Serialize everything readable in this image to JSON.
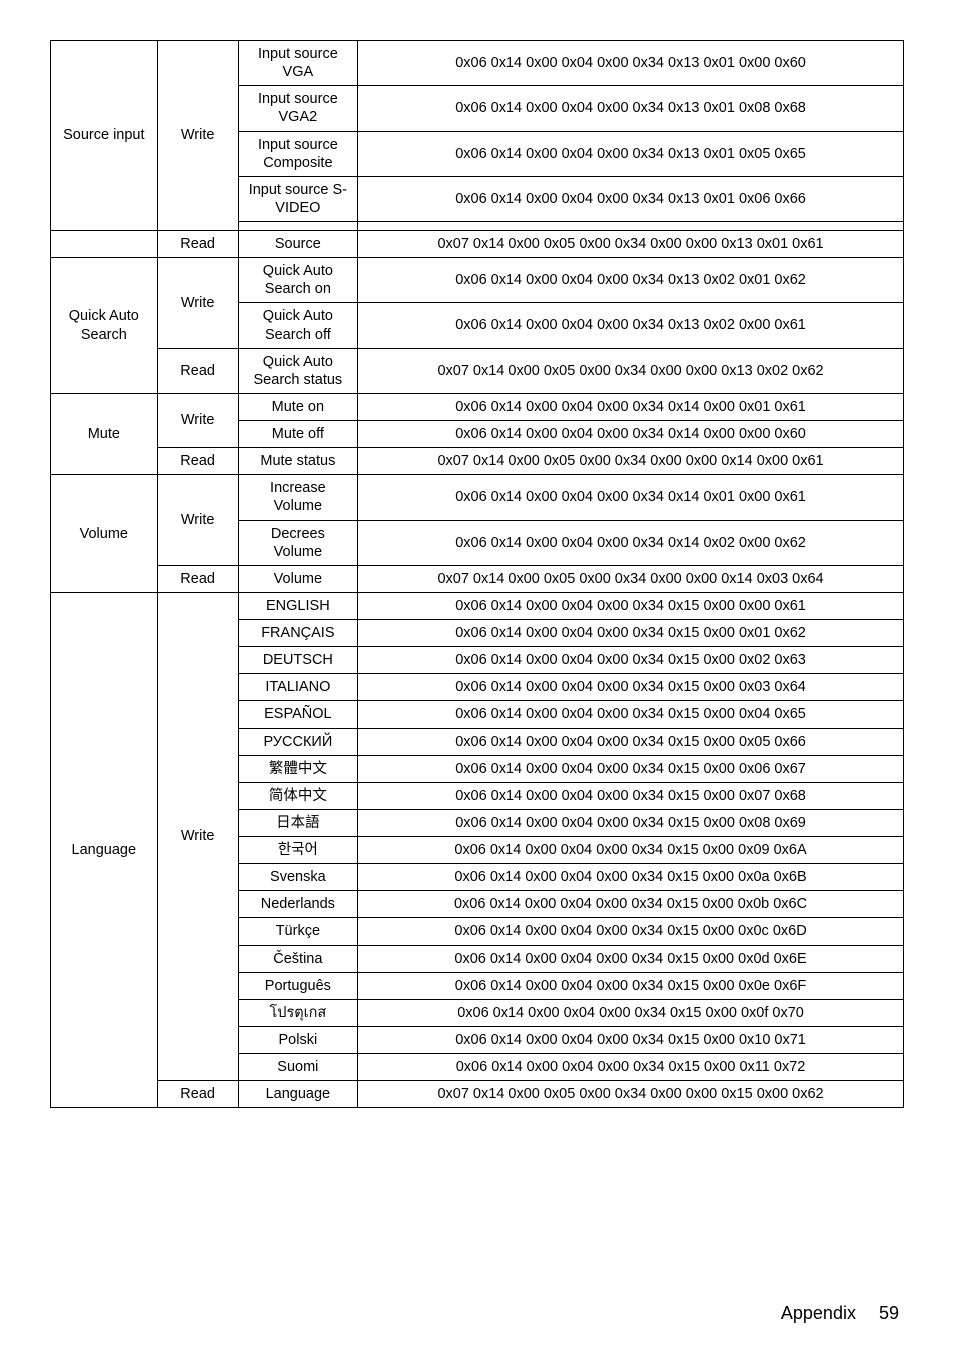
{
  "footer": {
    "label": "Appendix",
    "page": "59"
  },
  "rows": [
    {
      "c1": "Source input",
      "c1rs": 5,
      "c2": "Write",
      "c2rs": 5,
      "c3": "Input source VGA",
      "c4": "0x06 0x14 0x00 0x04 0x00 0x34 0x13 0x01 0x00 0x60"
    },
    {
      "c3": "Input source VGA2",
      "c4": "0x06 0x14 0x00 0x04 0x00 0x34 0x13 0x01 0x08 0x68"
    },
    {
      "c3": "Input source Composite",
      "c4": "0x06 0x14 0x00 0x04 0x00 0x34 0x13 0x01 0x05 0x65"
    },
    {
      "c3": "Input source S-VIDEO",
      "c4": "0x06 0x14 0x00 0x04 0x00 0x34 0x13 0x01 0x06 0x66"
    },
    {
      "c3": "",
      "c4": ""
    },
    {
      "c1": "",
      "c1rs": 1,
      "c2": "Read",
      "c2rs": 1,
      "c3": "Source",
      "c4": "0x07 0x14 0x00 0x05 0x00 0x34 0x00 0x00 0x13 0x01 0x61"
    },
    {
      "c1": "Quick Auto Search",
      "c1rs": 3,
      "c2": "Write",
      "c2rs": 2,
      "c3": "Quick Auto Search on",
      "c4": "0x06 0x14 0x00 0x04 0x00 0x34 0x13 0x02 0x01 0x62"
    },
    {
      "c3": "Quick Auto Search off",
      "c4": "0x06 0x14 0x00 0x04 0x00 0x34 0x13 0x02 0x00 0x61"
    },
    {
      "c2": "Read",
      "c2rs": 1,
      "c3": "Quick Auto Search status",
      "c4": "0x07 0x14 0x00 0x05 0x00 0x34 0x00 0x00 0x13 0x02 0x62"
    },
    {
      "c1": "Mute",
      "c1rs": 3,
      "c2": "Write",
      "c2rs": 2,
      "c3": "Mute on",
      "c4": "0x06 0x14 0x00 0x04 0x00 0x34 0x14 0x00 0x01 0x61"
    },
    {
      "c3": "Mute off",
      "c4": "0x06 0x14 0x00 0x04 0x00 0x34 0x14 0x00 0x00 0x60"
    },
    {
      "c2": "Read",
      "c2rs": 1,
      "c3": "Mute status",
      "c4": "0x07 0x14 0x00 0x05 0x00 0x34 0x00 0x00 0x14 0x00 0x61"
    },
    {
      "c1": "Volume",
      "c1rs": 3,
      "c2": "Write",
      "c2rs": 2,
      "c3": "Increase Volume",
      "c4": "0x06 0x14 0x00 0x04 0x00 0x34 0x14 0x01 0x00 0x61"
    },
    {
      "c3": "Decrees Volume",
      "c4": "0x06 0x14 0x00 0x04 0x00 0x34 0x14 0x02 0x00 0x62"
    },
    {
      "c2": "Read",
      "c2rs": 1,
      "c3": "Volume",
      "c4": "0x07 0x14 0x00 0x05 0x00 0x34 0x00 0x00 0x14 0x03 0x64"
    },
    {
      "c1": "Language",
      "c1rs": 19,
      "c2": "Write",
      "c2rs": 18,
      "c3": "ENGLISH",
      "c4": "0x06 0x14 0x00 0x04 0x00 0x34 0x15 0x00 0x00 0x61"
    },
    {
      "c3": "FRANÇAIS",
      "c4": "0x06 0x14 0x00 0x04 0x00 0x34 0x15 0x00 0x01 0x62"
    },
    {
      "c3": "DEUTSCH",
      "c4": "0x06 0x14 0x00 0x04 0x00 0x34 0x15 0x00 0x02 0x63"
    },
    {
      "c3": "ITALIANO",
      "c4": "0x06 0x14 0x00 0x04 0x00 0x34 0x15 0x00 0x03 0x64"
    },
    {
      "c3": "ESPAÑOL",
      "c4": "0x06 0x14 0x00 0x04 0x00 0x34 0x15 0x00 0x04 0x65"
    },
    {
      "c3": "РУССКИЙ",
      "c4": "0x06 0x14 0x00 0x04 0x00 0x34 0x15 0x00 0x05 0x66"
    },
    {
      "c3": "繁體中文",
      "c4": "0x06 0x14 0x00 0x04 0x00 0x34 0x15 0x00 0x06 0x67"
    },
    {
      "c3": "简体中文",
      "c4": "0x06 0x14 0x00 0x04 0x00 0x34 0x15 0x00 0x07 0x68"
    },
    {
      "c3": "日本語",
      "c4": "0x06 0x14 0x00 0x04 0x00 0x34 0x15 0x00 0x08 0x69"
    },
    {
      "c3": "한국어",
      "c4": "0x06 0x14 0x00 0x04 0x00 0x34 0x15 0x00 0x09 0x6A"
    },
    {
      "c3": "Svenska",
      "c4": "0x06 0x14 0x00 0x04 0x00 0x34 0x15 0x00 0x0a 0x6B"
    },
    {
      "c3": "Nederlands",
      "c4": "0x06 0x14 0x00 0x04 0x00 0x34 0x15 0x00 0x0b 0x6C"
    },
    {
      "c3": "Türkçe",
      "c4": "0x06 0x14 0x00 0x04 0x00 0x34 0x15 0x00 0x0c 0x6D"
    },
    {
      "c3": "Čeština",
      "c4": "0x06 0x14 0x00 0x04 0x00 0x34 0x15 0x00 0x0d 0x6E"
    },
    {
      "c3": "Português",
      "c4": "0x06 0x14 0x00 0x04 0x00 0x34 0x15 0x00 0x0e 0x6F"
    },
    {
      "c3": "โปรตุเกส",
      "c4": "0x06 0x14 0x00 0x04 0x00 0x34 0x15 0x00 0x0f 0x70"
    },
    {
      "c3": "Polski",
      "c4": "0x06 0x14 0x00 0x04 0x00 0x34 0x15 0x00 0x10 0x71"
    },
    {
      "c3": "Suomi",
      "c4": "0x06 0x14 0x00 0x04 0x00 0x34 0x15 0x00 0x11 0x72"
    },
    {
      "c2": "Read",
      "c2rs": 1,
      "c3": "Language",
      "c4": "0x07 0x14 0x00 0x05 0x00 0x34 0x00 0x00 0x15 0x00 0x62"
    }
  ]
}
